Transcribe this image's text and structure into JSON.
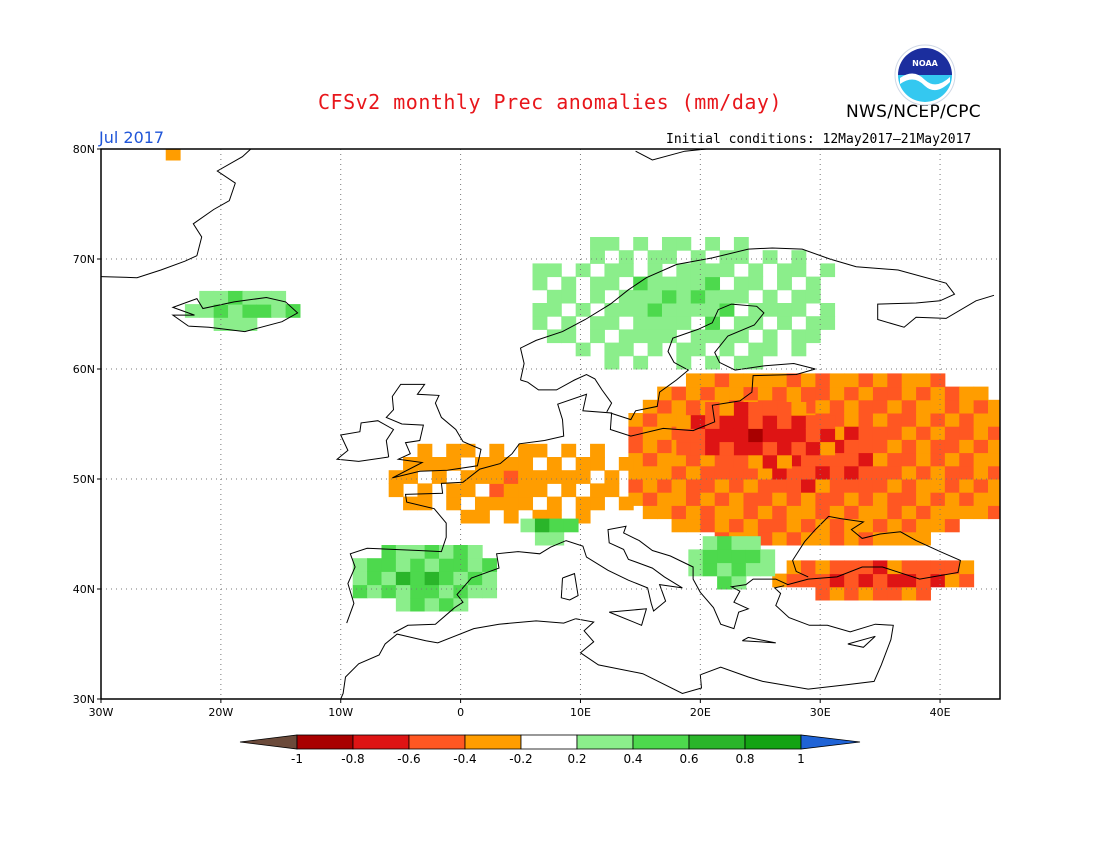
{
  "title": "CFSv2 monthly Prec anomalies (mm/day)",
  "organization": "NWS/NCEP/CPC",
  "logo_text": "NOAA",
  "valid_month": "Jul 2017",
  "initial_conditions": "Initial conditions: 12May2017–21May2017",
  "map": {
    "region": "Europe",
    "lon_range": [
      -30,
      45
    ],
    "lat_range": [
      30,
      80
    ],
    "grid": true,
    "lat_labels": [
      "30N",
      "40N",
      "50N",
      "60N",
      "70N",
      "80N"
    ],
    "lon_labels": [
      "30W",
      "20W",
      "10W",
      "0",
      "10E",
      "20E",
      "30E",
      "40E"
    ],
    "colors": {
      "title": "#e8161b",
      "month": "#1f55d8"
    },
    "anomaly_fields": [
      {
        "name": "Eastern Europe dry",
        "level": -0.5,
        "lon": [
          14,
          45
        ],
        "lat": [
          44,
          59
        ]
      },
      {
        "name": "Core Poland/Belarus dry",
        "level": -0.7,
        "lon": [
          18,
          30
        ],
        "lat": [
          51,
          56
        ]
      },
      {
        "name": "Western Europe dry",
        "level": -0.3,
        "lon": [
          -6,
          14
        ],
        "lat": [
          46,
          53
        ]
      },
      {
        "name": "Turkey dry",
        "level": -0.6,
        "lon": [
          26,
          42
        ],
        "lat": [
          39,
          42
        ]
      },
      {
        "name": "Scandinavia wet",
        "level": 0.3,
        "lon": [
          6,
          30
        ],
        "lat": [
          60,
          71
        ]
      },
      {
        "name": "Iberia wet",
        "level": 0.5,
        "lon": [
          -9,
          3
        ],
        "lat": [
          38,
          43
        ]
      },
      {
        "name": "Alps wet",
        "level": 0.6,
        "lon": [
          5,
          9
        ],
        "lat": [
          44,
          46
        ]
      },
      {
        "name": "Balkans wet",
        "level": 0.5,
        "lon": [
          19,
          25
        ],
        "lat": [
          40,
          44
        ]
      },
      {
        "name": "Iceland wet",
        "level": 0.4,
        "lon": [
          -23,
          -14
        ],
        "lat": [
          63.5,
          66.5
        ]
      },
      {
        "name": "Greenland coast dry",
        "level": -0.3,
        "lon": [
          -27,
          -21
        ],
        "lat": [
          79,
          80
        ]
      }
    ]
  },
  "colorbar": {
    "labels": [
      "-1",
      "-0.8",
      "-0.6",
      "-0.4",
      "-0.2",
      "0.2",
      "0.4",
      "0.6",
      "0.8",
      "1"
    ],
    "colors": [
      "#6b4a3a",
      "#a80000",
      "#de1414",
      "#ff5722",
      "#ff9d00",
      "#ffffff",
      "#8bee8b",
      "#4dd94d",
      "#2ab52a",
      "#13a313",
      "#1f63d6"
    ]
  }
}
